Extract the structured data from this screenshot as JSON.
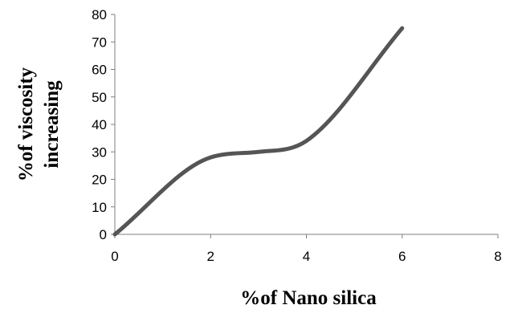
{
  "chart_data": {
    "type": "line",
    "xlabel": "%of Nano silica",
    "ylabel_lines": [
      "%of viscosity",
      "increasing"
    ],
    "xlim": [
      0,
      8
    ],
    "ylim": [
      0,
      80
    ],
    "x_ticks": [
      0,
      2,
      4,
      6,
      8
    ],
    "y_ticks": [
      0,
      10,
      20,
      30,
      40,
      50,
      60,
      70,
      80
    ],
    "x_tick_labels": [
      "0",
      "2",
      "4",
      "6",
      "8"
    ],
    "y_tick_labels": [
      "0",
      "10",
      "20",
      "30",
      "40",
      "50",
      "60",
      "70",
      "80"
    ],
    "grid": false,
    "smooth": true,
    "series": [
      {
        "x": [
          0,
          2,
          3,
          4,
          6
        ],
        "y": [
          0,
          28,
          30,
          34,
          75
        ],
        "color": "#555555"
      }
    ]
  }
}
